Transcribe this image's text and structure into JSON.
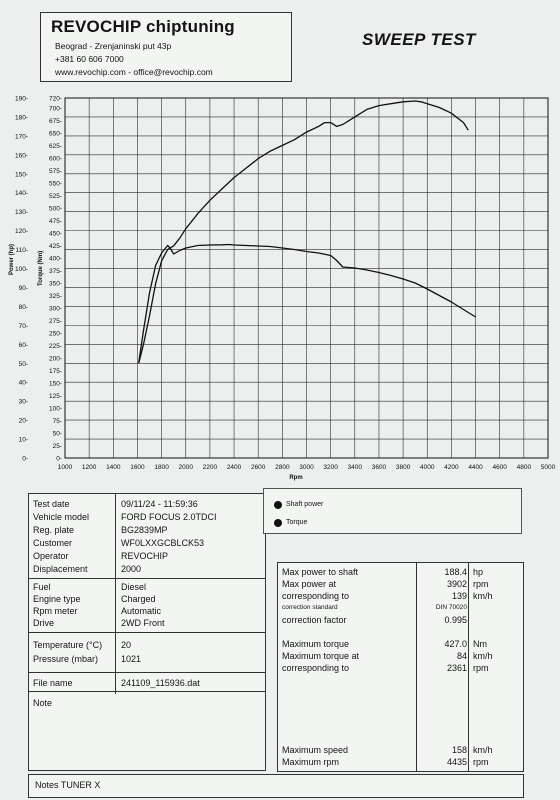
{
  "header": {
    "company": "REVOCHIP chiptuning",
    "address": "Beograd - Zrenjaninski put 43p",
    "phone": "+381 60 606 7000",
    "web": "www.revochip.com - office@revochip.com"
  },
  "test_title": "SWEEP TEST",
  "chart_data": {
    "type": "line",
    "xlabel": "Rpm",
    "y1label": "Power (hp)",
    "y2label": "Torque (Nm)",
    "x_ticks": [
      "1000",
      "1200",
      "1400",
      "1600",
      "1800",
      "2000",
      "2200",
      "2400",
      "2600",
      "2800",
      "3000",
      "3200",
      "3400",
      "3600",
      "3800",
      "4000",
      "4200",
      "4400",
      "4600",
      "4800",
      "5000"
    ],
    "y1_ticks": [
      "0-",
      "10-",
      "20-",
      "30-",
      "40-",
      "50-",
      "60-",
      "70-",
      "80-",
      "90-",
      "100-",
      "110-",
      "120-",
      "130-",
      "140-",
      "150-",
      "160-",
      "170-",
      "180-",
      "190-"
    ],
    "y2_ticks": [
      "0-",
      "25-",
      "50-",
      "75-",
      "100-",
      "125-",
      "150-",
      "175-",
      "200-",
      "225-",
      "250-",
      "275-",
      "300-",
      "325-",
      "350-",
      "375-",
      "400-",
      "425-",
      "450-",
      "475-",
      "500-",
      "525-",
      "550-",
      "575-",
      "600-",
      "625-",
      "650-",
      "675-",
      "700-",
      "720-"
    ],
    "xlim": [
      1000,
      5000
    ],
    "y1lim": [
      0,
      190
    ],
    "y2lim": [
      0,
      720
    ],
    "grid": true,
    "series": [
      {
        "name": "Shaft power",
        "axis": "y1",
        "unit": "hp",
        "x": [
          1610,
          1650,
          1700,
          1750,
          1800,
          1850,
          1900,
          1950,
          2000,
          2050,
          2100,
          2200,
          2300,
          2400,
          2500,
          2600,
          2700,
          2800,
          2900,
          3000,
          3100,
          3150,
          3200,
          3250,
          3300,
          3350,
          3400,
          3500,
          3600,
          3700,
          3800,
          3900,
          3950,
          4000,
          4100,
          4200,
          4300,
          4340
        ],
        "y": [
          50,
          60,
          75,
          92,
          104,
          110,
          112,
          116,
          121,
          125,
          129,
          136,
          142,
          148,
          153,
          158,
          162,
          165,
          168,
          172,
          175,
          177,
          177,
          175,
          176,
          178,
          180,
          184,
          186,
          187,
          188,
          188.4,
          188,
          187,
          185,
          182,
          177,
          173
        ]
      },
      {
        "name": "Torque",
        "axis": "y2",
        "unit": "Nm",
        "x": [
          1610,
          1650,
          1700,
          1750,
          1800,
          1850,
          1870,
          1900,
          1950,
          2000,
          2100,
          2200,
          2300,
          2361,
          2400,
          2500,
          2600,
          2700,
          2800,
          2900,
          3000,
          3100,
          3200,
          3250,
          3300,
          3400,
          3500,
          3600,
          3700,
          3800,
          3900,
          4000,
          4100,
          4200,
          4300,
          4400
        ],
        "y": [
          190,
          255,
          330,
          385,
          410,
          425,
          420,
          408,
          415,
          420,
          425,
          426,
          426.5,
          427,
          426,
          425,
          424,
          423,
          420,
          417,
          413,
          410,
          405,
          395,
          382,
          380,
          376,
          371,
          365,
          358,
          350,
          338,
          325,
          312,
          297,
          282
        ]
      }
    ]
  },
  "info": {
    "test_date": {
      "label": "Test date",
      "value": "09/11/24 - 11:59:36"
    },
    "vehicle_model": {
      "label": "Vehicle model",
      "value": "FORD FOCUS 2.0TDCI"
    },
    "reg_plate": {
      "label": "Reg. plate",
      "value": "BG2839MP"
    },
    "customer": {
      "label": "Customer",
      "value": "WF0LXXGCBLCK53"
    },
    "operator": {
      "label": "Operator",
      "value": "REVOCHIP"
    },
    "displacement": {
      "label": "Displacement",
      "value": "2000"
    },
    "fuel": {
      "label": "Fuel",
      "value": "Diesel"
    },
    "engine_type": {
      "label": "Engine type",
      "value": "Charged"
    },
    "rpm_meter": {
      "label": "Rpm meter",
      "value": "Automatic"
    },
    "drive": {
      "label": "Drive",
      "value": "2WD Front"
    },
    "temperature": {
      "label": "Temperature (°C)",
      "value": "20"
    },
    "pressure": {
      "label": "Pressure (mbar)",
      "value": "1021"
    },
    "file_name": {
      "label": "File name",
      "value": "241109_115936.dat"
    },
    "note": {
      "label": "Note",
      "value": ""
    }
  },
  "legend": {
    "power": "Shaft power",
    "torque": "Torque"
  },
  "stats": {
    "max_power": {
      "label": "Max power to shaft",
      "value": "188.4",
      "unit": "hp"
    },
    "max_power_at": {
      "label": "Max power at",
      "value": "3902",
      "unit": "rpm"
    },
    "power_speed": {
      "label": "corresponding to",
      "value": "139",
      "unit": "km/h"
    },
    "correction_standard": {
      "label": "correction standard",
      "value": "DIN 70020"
    },
    "correction_factor": {
      "label": "correction factor",
      "value": "0.995"
    },
    "max_torque": {
      "label": "Maximum torque",
      "value": "427.0",
      "unit": "Nm"
    },
    "max_torque_at": {
      "label": "Maximum torque at",
      "value": "84",
      "unit": "km/h"
    },
    "torque_rpm": {
      "label": "corresponding to",
      "value": "2361",
      "unit": "rpm"
    },
    "max_speed": {
      "label": "Maximum speed",
      "value": "158",
      "unit": "km/h"
    },
    "max_rpm": {
      "label": "Maximum rpm",
      "value": "4435",
      "unit": "rpm"
    }
  },
  "notes": "Notes  TUNER X"
}
